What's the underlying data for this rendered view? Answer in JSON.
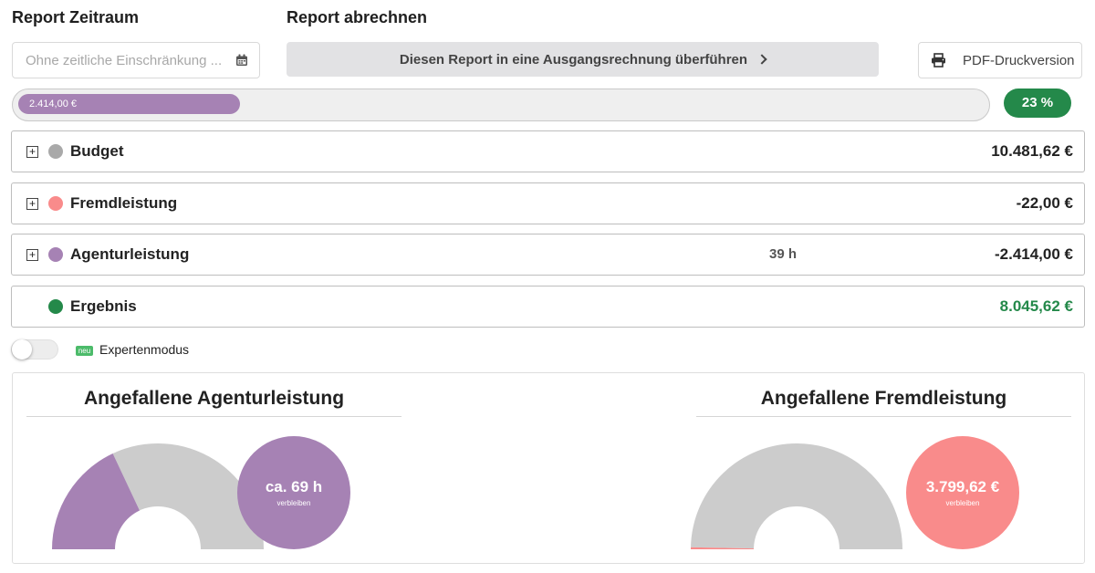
{
  "header": {
    "period_title": "Report Zeitraum",
    "billing_title": "Report abrechnen"
  },
  "period": {
    "placeholder": "Ohne zeitliche Einschränkung ...",
    "icon": "calendar-icon"
  },
  "actions": {
    "transfer_label": "Diesen Report in eine Ausgangsrechnung überführen",
    "pdf_label": "PDF-Druckversion",
    "pdf_icon": "printer-icon"
  },
  "progress": {
    "fill_label": "2.414,00 €",
    "fill_fraction": 0.23,
    "fill_color": "#a682b4",
    "percent_label": "23 %",
    "percent_color": "#24894a"
  },
  "rows": [
    {
      "label": "Budget",
      "hours": "",
      "value": "10.481,62 €",
      "dot_color": "#a9a9a9",
      "value_color": "#222222",
      "expandable": true
    },
    {
      "label": "Fremdleistung",
      "hours": "",
      "value": "-22,00 €",
      "dot_color": "#f98b8b",
      "value_color": "#222222",
      "expandable": true
    },
    {
      "label": "Agenturleistung",
      "hours": "39 h",
      "value": "-2.414,00 €",
      "dot_color": "#a682b4",
      "value_color": "#222222",
      "expandable": true
    },
    {
      "label": "Ergebnis",
      "hours": "",
      "value": "8.045,62 €",
      "dot_color": "#24894a",
      "value_color": "#24894a",
      "expandable": false
    }
  ],
  "expert_mode": {
    "badge": "neu",
    "label": "Expertenmodus",
    "enabled": false
  },
  "charts": [
    {
      "title": "Angefallene Agenturleistung",
      "used_fraction": 0.36,
      "used_color": "#a682b4",
      "rest_color": "#cccccc",
      "bubble_value": "ca. 69 h",
      "bubble_sub": "verbleiben",
      "bubble_color": "#a682b4"
    },
    {
      "title": "Angefallene Fremdleistung",
      "used_fraction": 0.006,
      "used_color": "#f98b8b",
      "rest_color": "#cccccc",
      "bubble_value": "3.799,62 €",
      "bubble_sub": "verbleiben",
      "bubble_color": "#f98b8b"
    }
  ]
}
